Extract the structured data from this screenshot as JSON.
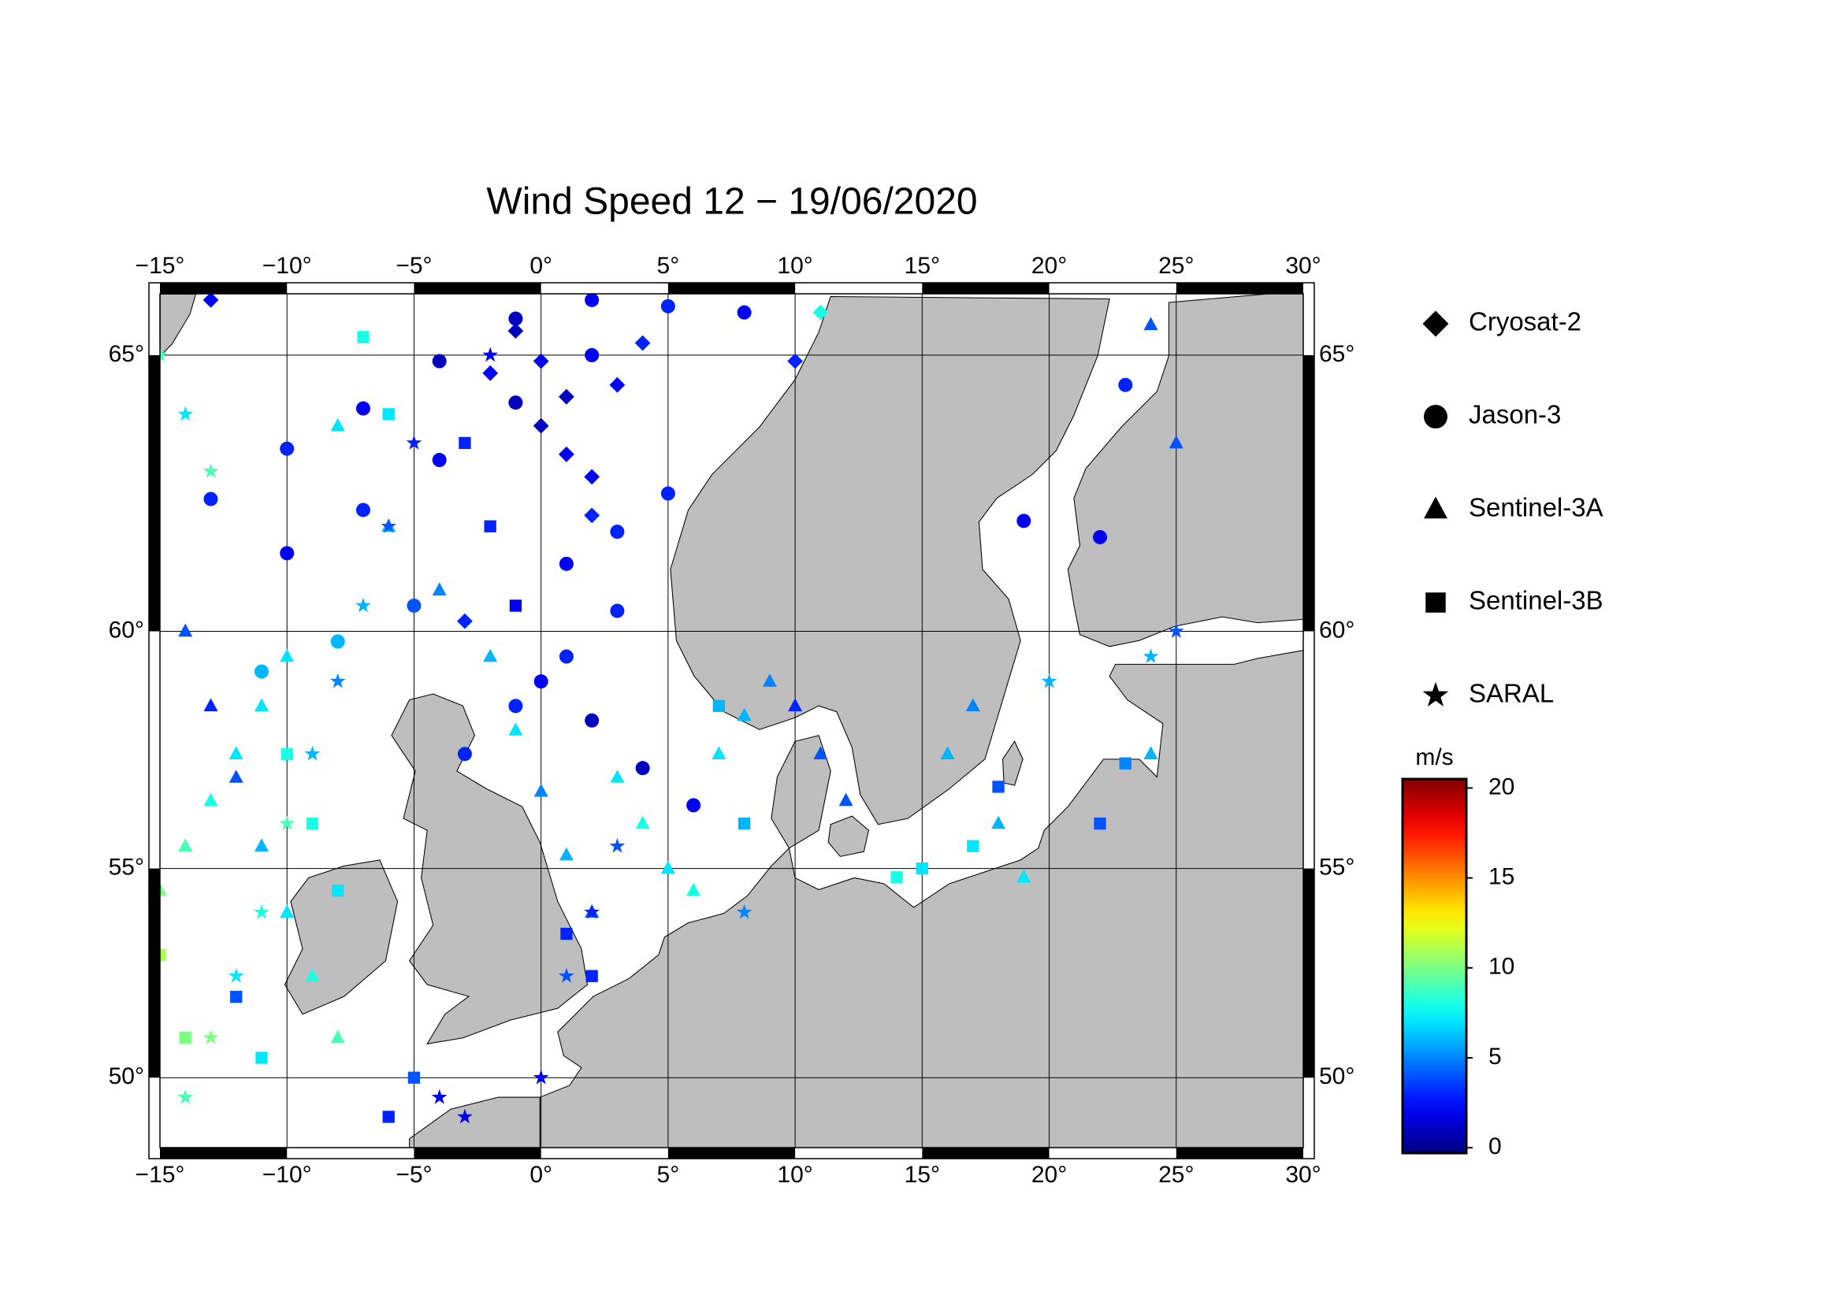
{
  "chart_data": {
    "type": "scatter",
    "projection": "mercator",
    "title": "Wind Speed 12 − 19/06/2020",
    "xlim": [
      -15,
      30
    ],
    "ylim": [
      48.2,
      66.0
    ],
    "xticks": [
      {
        "value": -15,
        "label": "−15°"
      },
      {
        "value": -10,
        "label": "−10°"
      },
      {
        "value": -5,
        "label": "−5°"
      },
      {
        "value": 0,
        "label": "0°"
      },
      {
        "value": 5,
        "label": "5°"
      },
      {
        "value": 10,
        "label": "10°"
      },
      {
        "value": 15,
        "label": "15°"
      },
      {
        "value": 20,
        "label": "20°"
      },
      {
        "value": 25,
        "label": "25°"
      },
      {
        "value": 30,
        "label": "30°"
      }
    ],
    "yticks": [
      {
        "value": 50,
        "label": "50°"
      },
      {
        "value": 55,
        "label": "55°"
      },
      {
        "value": 60,
        "label": "60°"
      },
      {
        "value": 65,
        "label": "65°"
      }
    ],
    "grid": true,
    "colormap": "jet",
    "colorbar": {
      "label": "m/s",
      "lim": [
        -0.3,
        20.5
      ],
      "ticks": [
        0,
        5,
        10,
        15,
        20
      ]
    },
    "series": [
      {
        "name": "Cryosat-2",
        "marker": "diamond",
        "lon": [
          0,
          1,
          2,
          1,
          0,
          -1,
          3,
          4,
          2,
          -2,
          10,
          11,
          -13,
          -3
        ],
        "lat": [
          63.8,
          63.3,
          62.9,
          64.3,
          64.9,
          65.4,
          64.5,
          65.2,
          62.2,
          64.7,
          64.9,
          65.7,
          65.9,
          60.2
        ],
        "values": [
          1,
          2,
          2,
          1,
          2,
          1,
          2,
          3,
          3,
          2,
          3,
          8,
          2,
          3
        ]
      },
      {
        "name": "Jason-3",
        "marker": "circle",
        "lon": [
          -13,
          -10,
          -7,
          -4,
          -1,
          2,
          -10,
          -7,
          -4,
          -1,
          2,
          5,
          8,
          0,
          2,
          4,
          6,
          -3,
          -1,
          1,
          3,
          1,
          3,
          5,
          22,
          19,
          23,
          -5,
          -8,
          -11
        ],
        "lat": [
          62.5,
          63.4,
          64.1,
          64.9,
          65.6,
          65.9,
          61.5,
          62.3,
          63.2,
          64.2,
          65,
          65.8,
          65.7,
          59,
          58.2,
          57.2,
          56.4,
          57.5,
          58.5,
          59.5,
          60.4,
          61.3,
          61.9,
          62.6,
          61.8,
          62.1,
          64.5,
          60.5,
          59.8,
          59.2
        ],
        "values": [
          3,
          3,
          2,
          1,
          1,
          2,
          2,
          3,
          2,
          1,
          2,
          3,
          2,
          2,
          1,
          1,
          2,
          3,
          3,
          3,
          3,
          2,
          3,
          3,
          2,
          2,
          3,
          4,
          6,
          6
        ]
      },
      {
        "name": "Sentinel-3A",
        "marker": "triangle",
        "lon": [
          -15,
          -14,
          -13,
          -12,
          -11,
          -10,
          -14,
          -13,
          -12,
          -11,
          -10,
          -9,
          -8,
          3,
          4,
          5,
          6,
          7,
          8,
          9,
          10,
          11,
          12,
          16,
          17,
          18,
          19,
          24,
          25,
          24,
          -8,
          -6,
          -4,
          -2,
          -1,
          0,
          1,
          2
        ],
        "lat": [
          54.5,
          55.5,
          56.5,
          57.5,
          58.5,
          59.5,
          60,
          58.5,
          57,
          55.5,
          54,
          52.5,
          51,
          57,
          56,
          55,
          54.5,
          57.5,
          58.3,
          59,
          58.5,
          57.5,
          56.5,
          57.5,
          58.5,
          56,
          54.8,
          57.5,
          63.5,
          65.5,
          63.8,
          62,
          60.8,
          59.5,
          58,
          56.7,
          55.3,
          54
        ],
        "values": [
          10,
          9,
          8,
          7,
          7,
          7,
          4,
          3,
          4,
          6,
          7,
          8,
          9,
          7,
          8,
          7,
          8,
          7,
          6,
          5,
          3,
          4,
          4,
          6,
          5,
          6,
          7,
          6,
          4,
          4,
          7,
          6,
          5,
          6,
          7,
          5,
          6,
          4
        ]
      },
      {
        "name": "Sentinel-3B",
        "marker": "square",
        "lon": [
          -10,
          -9,
          -8,
          -11,
          -12,
          -6,
          -5,
          1,
          2,
          -3,
          -2,
          -1,
          17,
          18,
          22,
          23,
          7,
          8,
          15,
          14,
          -14,
          -15,
          -7,
          -6
        ],
        "lat": [
          57.5,
          56,
          54.5,
          50.5,
          52,
          49,
          50,
          53.5,
          52.5,
          63.5,
          62,
          60.5,
          55.5,
          56.8,
          56,
          57.3,
          58.5,
          56,
          55,
          54.8,
          51,
          53,
          65.3,
          64
        ],
        "values": [
          8,
          8,
          7,
          7,
          4,
          3,
          4,
          3,
          3,
          3,
          3,
          2,
          7,
          4,
          4,
          5,
          6,
          6,
          7,
          8,
          10,
          11,
          8,
          7
        ]
      },
      {
        "name": "SARAL",
        "marker": "star",
        "lon": [
          -14,
          -13,
          -12,
          -11,
          -10,
          -9,
          -8,
          -7,
          -6,
          -5,
          0,
          -4,
          -3,
          1,
          2,
          3,
          -14,
          -15,
          -13,
          8,
          20,
          24,
          25,
          -2
        ],
        "lat": [
          49.5,
          51,
          52.5,
          54,
          56,
          57.5,
          59,
          60.5,
          62,
          63.5,
          50,
          49.5,
          49,
          52.5,
          54,
          55.5,
          64,
          65,
          63,
          54,
          59,
          59.5,
          60,
          65
        ],
        "values": [
          9,
          10,
          7,
          8,
          9,
          6,
          5,
          6,
          4,
          3,
          2,
          2,
          2,
          4,
          3,
          4,
          7,
          9,
          9,
          5,
          6,
          6,
          4,
          2
        ]
      }
    ]
  }
}
